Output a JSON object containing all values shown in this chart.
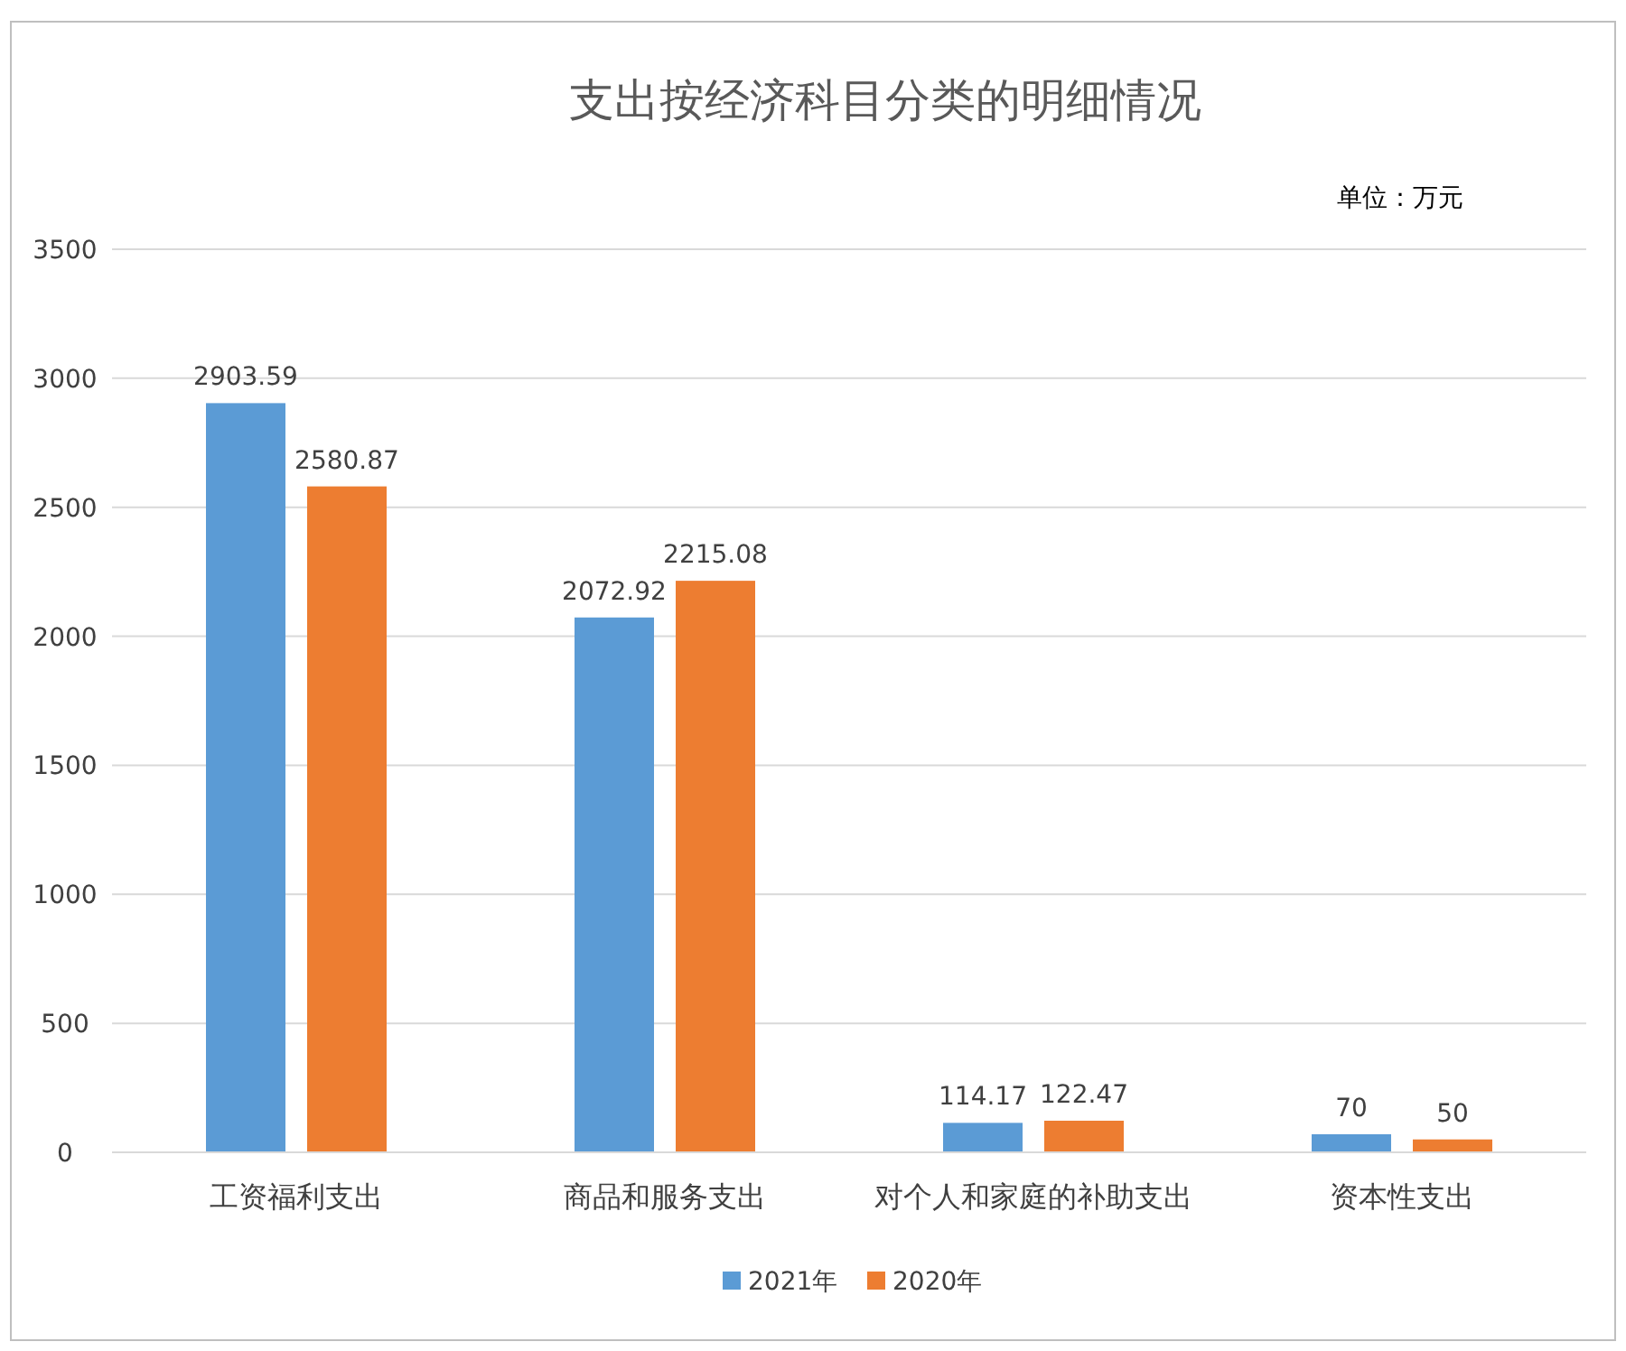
{
  "chart_data": {
    "type": "bar",
    "title": "支出按经济科目分类的明细情况",
    "annotations": [
      "单位：万元"
    ],
    "categories": [
      "工资福利支出",
      "商品和服务支出",
      "对个人和家庭的补助支出",
      "资本性支出"
    ],
    "series": [
      {
        "name": "2021年",
        "color": "#5b9bd5",
        "values": [
          2903.59,
          2072.92,
          114.17,
          70
        ]
      },
      {
        "name": "2020年",
        "color": "#ed7d31",
        "values": [
          2580.87,
          2215.08,
          122.47,
          50
        ]
      }
    ],
    "ylim": [
      0,
      3500
    ],
    "yticks": [
      0,
      500,
      1000,
      1500,
      2000,
      2500,
      3000,
      3500
    ],
    "grid": "y",
    "legend": "bottom",
    "data_labels": true
  }
}
